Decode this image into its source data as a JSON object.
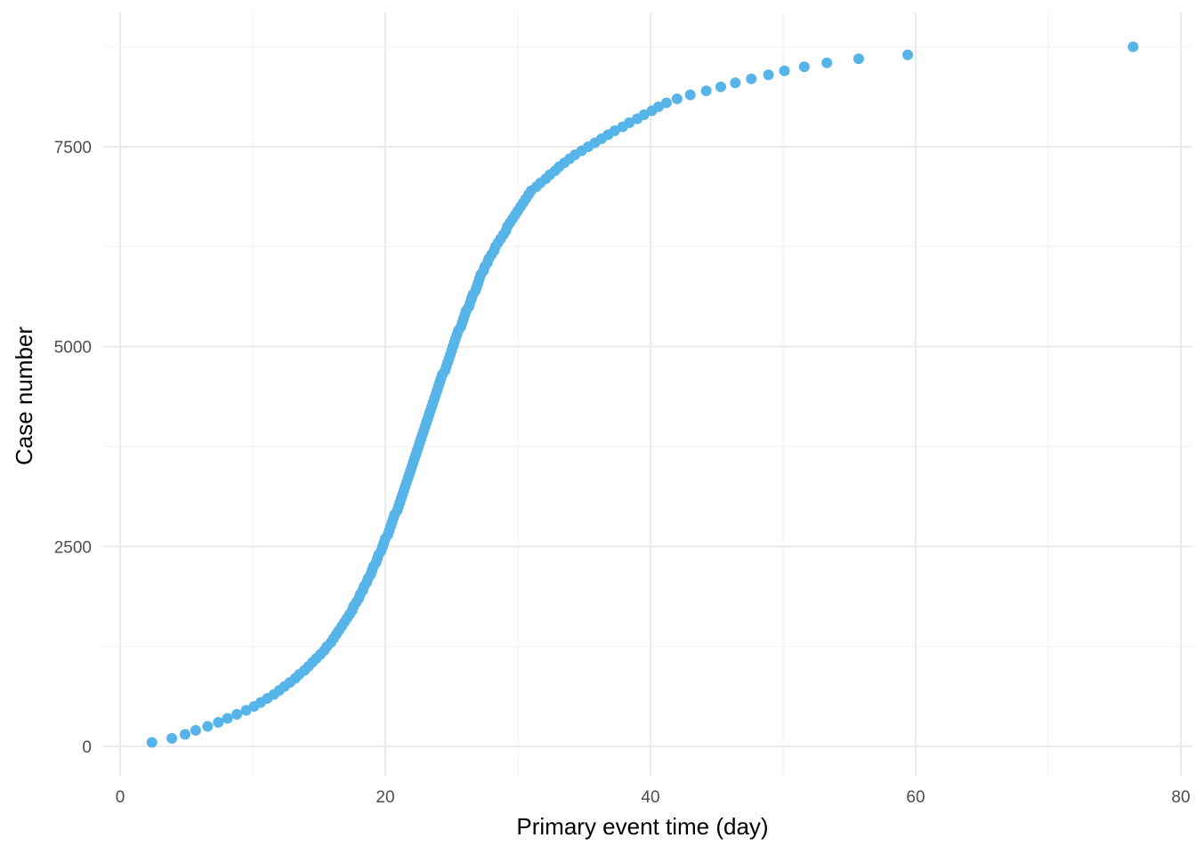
{
  "chart_data": {
    "type": "scatter",
    "title": "",
    "xlabel": "Primary event time (day)",
    "ylabel": "Case number",
    "xlim": [
      -1.2,
      80
    ],
    "ylim": [
      -300,
      8800
    ],
    "x_ticks": [
      0,
      20,
      40,
      60,
      80
    ],
    "x_tick_labels": [
      "0",
      "20",
      "40",
      "60",
      "80"
    ],
    "y_ticks": [
      0,
      2500,
      5000,
      7500
    ],
    "y_tick_labels": [
      "0",
      "2500",
      "5000",
      "7500"
    ],
    "x_minor_ticks": [
      10,
      30,
      50,
      70
    ],
    "y_minor_ticks": [
      1250,
      3750,
      6250,
      8750
    ],
    "grid": true,
    "legend": "none",
    "point_color": "#56B4E9",
    "series": [
      {
        "points": [
          [
            2.4,
            50
          ],
          [
            3.9,
            100
          ],
          [
            4.9,
            150
          ],
          [
            5.7,
            200
          ],
          [
            6.6,
            250
          ],
          [
            7.4,
            300
          ],
          [
            8.1,
            350
          ],
          [
            8.8,
            400
          ],
          [
            9.5,
            450
          ],
          [
            10.1,
            500
          ],
          [
            10.6,
            550
          ],
          [
            11.1,
            600
          ],
          [
            11.6,
            650
          ],
          [
            12.0,
            700
          ],
          [
            12.4,
            750
          ],
          [
            12.8,
            800
          ],
          [
            13.2,
            850
          ],
          [
            13.5,
            900
          ],
          [
            13.9,
            950
          ],
          [
            14.2,
            1000
          ],
          [
            14.5,
            1050
          ],
          [
            14.8,
            1100
          ],
          [
            15.1,
            1150
          ],
          [
            15.4,
            1200
          ],
          [
            15.6,
            1250
          ],
          [
            15.9,
            1300
          ],
          [
            16.1,
            1350
          ],
          [
            16.3,
            1400
          ],
          [
            16.5,
            1450
          ],
          [
            16.7,
            1500
          ],
          [
            16.9,
            1550
          ],
          [
            17.1,
            1600
          ],
          [
            17.3,
            1650
          ],
          [
            17.5,
            1700
          ],
          [
            17.6,
            1750
          ],
          [
            17.8,
            1800
          ],
          [
            18.0,
            1850
          ],
          [
            18.1,
            1900
          ],
          [
            18.3,
            1950
          ],
          [
            18.4,
            2000
          ],
          [
            18.6,
            2050
          ],
          [
            18.7,
            2100
          ],
          [
            18.9,
            2150
          ],
          [
            19.0,
            2200
          ],
          [
            19.1,
            2250
          ],
          [
            19.3,
            2300
          ],
          [
            19.4,
            2350
          ],
          [
            19.5,
            2400
          ],
          [
            19.7,
            2450
          ],
          [
            19.8,
            2500
          ],
          [
            19.9,
            2550
          ],
          [
            20.0,
            2600
          ],
          [
            20.2,
            2650
          ],
          [
            20.3,
            2700
          ],
          [
            20.4,
            2750
          ],
          [
            20.5,
            2800
          ],
          [
            20.6,
            2850
          ],
          [
            20.7,
            2900
          ],
          [
            20.9,
            2950
          ],
          [
            21.0,
            3000
          ],
          [
            21.1,
            3050
          ],
          [
            21.2,
            3100
          ],
          [
            21.3,
            3150
          ],
          [
            21.4,
            3200
          ],
          [
            21.5,
            3250
          ],
          [
            21.6,
            3300
          ],
          [
            21.7,
            3350
          ],
          [
            21.8,
            3400
          ],
          [
            21.9,
            3450
          ],
          [
            22.0,
            3500
          ],
          [
            22.1,
            3550
          ],
          [
            22.2,
            3600
          ],
          [
            22.3,
            3650
          ],
          [
            22.4,
            3700
          ],
          [
            22.5,
            3750
          ],
          [
            22.6,
            3800
          ],
          [
            22.7,
            3850
          ],
          [
            22.8,
            3900
          ],
          [
            22.9,
            3950
          ],
          [
            23.0,
            4000
          ],
          [
            23.1,
            4050
          ],
          [
            23.2,
            4100
          ],
          [
            23.3,
            4150
          ],
          [
            23.4,
            4200
          ],
          [
            23.5,
            4250
          ],
          [
            23.6,
            4300
          ],
          [
            23.7,
            4350
          ],
          [
            23.8,
            4400
          ],
          [
            23.9,
            4450
          ],
          [
            24.0,
            4500
          ],
          [
            24.1,
            4550
          ],
          [
            24.2,
            4600
          ],
          [
            24.3,
            4650
          ],
          [
            24.5,
            4700
          ],
          [
            24.6,
            4750
          ],
          [
            24.7,
            4800
          ],
          [
            24.8,
            4850
          ],
          [
            24.9,
            4900
          ],
          [
            25.0,
            4950
          ],
          [
            25.1,
            5000
          ],
          [
            25.2,
            5050
          ],
          [
            25.3,
            5100
          ],
          [
            25.4,
            5150
          ],
          [
            25.5,
            5200
          ],
          [
            25.7,
            5250
          ],
          [
            25.8,
            5300
          ],
          [
            25.9,
            5350
          ],
          [
            26.0,
            5400
          ],
          [
            26.1,
            5450
          ],
          [
            26.3,
            5500
          ],
          [
            26.4,
            5550
          ],
          [
            26.5,
            5600
          ],
          [
            26.6,
            5650
          ],
          [
            26.8,
            5700
          ],
          [
            26.9,
            5750
          ],
          [
            27.0,
            5800
          ],
          [
            27.1,
            5850
          ],
          [
            27.2,
            5900
          ],
          [
            27.4,
            5950
          ],
          [
            27.5,
            6000
          ],
          [
            27.7,
            6050
          ],
          [
            27.8,
            6100
          ],
          [
            28.0,
            6150
          ],
          [
            28.2,
            6200
          ],
          [
            28.3,
            6250
          ],
          [
            28.5,
            6300
          ],
          [
            28.7,
            6350
          ],
          [
            28.9,
            6400
          ],
          [
            29.1,
            6450
          ],
          [
            29.2,
            6500
          ],
          [
            29.4,
            6550
          ],
          [
            29.6,
            6600
          ],
          [
            29.8,
            6650
          ],
          [
            30.0,
            6700
          ],
          [
            30.2,
            6750
          ],
          [
            30.4,
            6800
          ],
          [
            30.6,
            6850
          ],
          [
            30.8,
            6900
          ],
          [
            31.0,
            6950
          ],
          [
            31.4,
            7000
          ],
          [
            31.7,
            7050
          ],
          [
            32.1,
            7100
          ],
          [
            32.4,
            7150
          ],
          [
            32.8,
            7200
          ],
          [
            33.1,
            7250
          ],
          [
            33.5,
            7300
          ],
          [
            33.9,
            7350
          ],
          [
            34.3,
            7400
          ],
          [
            34.8,
            7450
          ],
          [
            35.3,
            7500
          ],
          [
            35.8,
            7550
          ],
          [
            36.3,
            7600
          ],
          [
            36.8,
            7650
          ],
          [
            37.3,
            7700
          ],
          [
            37.9,
            7750
          ],
          [
            38.4,
            7800
          ],
          [
            39.0,
            7850
          ],
          [
            39.5,
            7900
          ],
          [
            40.1,
            7950
          ],
          [
            40.6,
            8000
          ],
          [
            41.2,
            8050
          ],
          [
            42.0,
            8100
          ],
          [
            43.0,
            8150
          ],
          [
            44.2,
            8200
          ],
          [
            45.3,
            8250
          ],
          [
            46.4,
            8300
          ],
          [
            47.6,
            8350
          ],
          [
            48.9,
            8400
          ],
          [
            50.1,
            8450
          ],
          [
            51.6,
            8500
          ],
          [
            53.3,
            8550
          ],
          [
            55.7,
            8600
          ],
          [
            59.4,
            8650
          ],
          [
            76.4,
            8750
          ]
        ]
      }
    ]
  }
}
